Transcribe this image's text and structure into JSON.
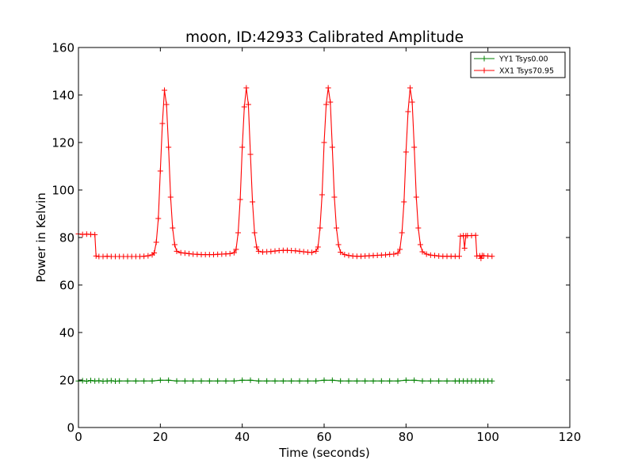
{
  "chart_data": {
    "type": "line",
    "title": "moon, ID:42933 Calibrated Amplitude",
    "xlabel": "Time (seconds)",
    "ylabel": "Power in Kelvin",
    "xlim": [
      0,
      120
    ],
    "ylim": [
      0,
      160
    ],
    "xticks": [
      0,
      20,
      40,
      60,
      80,
      100,
      120
    ],
    "yticks": [
      0,
      20,
      40,
      60,
      80,
      100,
      120,
      140,
      160
    ],
    "grid": false,
    "legend_position": "top-right",
    "marker": "+",
    "series": [
      {
        "name": "YY1 Tsys0.00",
        "color": "#008000",
        "points": [
          [
            0,
            19.6
          ],
          [
            1,
            19.7
          ],
          [
            2,
            19.5
          ],
          [
            3,
            19.8
          ],
          [
            4,
            19.6
          ],
          [
            5,
            19.7
          ],
          [
            6,
            19.5
          ],
          [
            7,
            19.6
          ],
          [
            8,
            19.7
          ],
          [
            9,
            19.5
          ],
          [
            10,
            19.6
          ],
          [
            12,
            19.6
          ],
          [
            14,
            19.6
          ],
          [
            16,
            19.6
          ],
          [
            18,
            19.6
          ],
          [
            20,
            19.9
          ],
          [
            22,
            19.9
          ],
          [
            24,
            19.6
          ],
          [
            26,
            19.6
          ],
          [
            28,
            19.6
          ],
          [
            30,
            19.6
          ],
          [
            32,
            19.6
          ],
          [
            34,
            19.6
          ],
          [
            36,
            19.6
          ],
          [
            38,
            19.6
          ],
          [
            40,
            19.9
          ],
          [
            42,
            19.9
          ],
          [
            44,
            19.6
          ],
          [
            46,
            19.6
          ],
          [
            48,
            19.6
          ],
          [
            50,
            19.6
          ],
          [
            52,
            19.6
          ],
          [
            54,
            19.6
          ],
          [
            56,
            19.6
          ],
          [
            58,
            19.6
          ],
          [
            60,
            19.9
          ],
          [
            62,
            19.9
          ],
          [
            64,
            19.6
          ],
          [
            66,
            19.6
          ],
          [
            68,
            19.6
          ],
          [
            70,
            19.6
          ],
          [
            72,
            19.6
          ],
          [
            74,
            19.6
          ],
          [
            76,
            19.6
          ],
          [
            78,
            19.6
          ],
          [
            80,
            19.9
          ],
          [
            82,
            19.9
          ],
          [
            84,
            19.6
          ],
          [
            86,
            19.6
          ],
          [
            88,
            19.6
          ],
          [
            90,
            19.6
          ],
          [
            92,
            19.6
          ],
          [
            93,
            19.6
          ],
          [
            94,
            19.6
          ],
          [
            95,
            19.6
          ],
          [
            96,
            19.6
          ],
          [
            97,
            19.6
          ],
          [
            98,
            19.6
          ],
          [
            99,
            19.6
          ],
          [
            100,
            19.6
          ],
          [
            101,
            19.6
          ]
        ]
      },
      {
        "name": "XX1 Tsys70.95",
        "color": "#ff0000",
        "points": [
          [
            0,
            81.5
          ],
          [
            1,
            81.3
          ],
          [
            2,
            81.4
          ],
          [
            3,
            81.3
          ],
          [
            4,
            81.2
          ],
          [
            4.3,
            72.2
          ],
          [
            5,
            72.0
          ],
          [
            6,
            72.0
          ],
          [
            7,
            72.1
          ],
          [
            8,
            72.0
          ],
          [
            9,
            72.0
          ],
          [
            10,
            72.0
          ],
          [
            11,
            72.0
          ],
          [
            12,
            72.0
          ],
          [
            13,
            72.0
          ],
          [
            14,
            72.0
          ],
          [
            15,
            72.0
          ],
          [
            16,
            72.1
          ],
          [
            17,
            72.3
          ],
          [
            18,
            72.7
          ],
          [
            18.5,
            73.5
          ],
          [
            19,
            78
          ],
          [
            19.5,
            88
          ],
          [
            20,
            108
          ],
          [
            20.5,
            128
          ],
          [
            21,
            142
          ],
          [
            21.5,
            136
          ],
          [
            22,
            118
          ],
          [
            22.5,
            97
          ],
          [
            23,
            84
          ],
          [
            23.5,
            77
          ],
          [
            24,
            74.2
          ],
          [
            25,
            73.6
          ],
          [
            26,
            73.4
          ],
          [
            27,
            73.2
          ],
          [
            28,
            73.0
          ],
          [
            29,
            72.9
          ],
          [
            30,
            72.8
          ],
          [
            31,
            72.8
          ],
          [
            32,
            72.8
          ],
          [
            33,
            72.8
          ],
          [
            34,
            72.9
          ],
          [
            35,
            73.0
          ],
          [
            36,
            73.1
          ],
          [
            37,
            73.2
          ],
          [
            38,
            73.6
          ],
          [
            38.5,
            75
          ],
          [
            39,
            82
          ],
          [
            39.5,
            96
          ],
          [
            40,
            118
          ],
          [
            40.5,
            135
          ],
          [
            41,
            143
          ],
          [
            41.5,
            136
          ],
          [
            42,
            115
          ],
          [
            42.5,
            95
          ],
          [
            43,
            82
          ],
          [
            43.5,
            76
          ],
          [
            44,
            74.2
          ],
          [
            45,
            73.9
          ],
          [
            46,
            74.0
          ],
          [
            47,
            74.1
          ],
          [
            48,
            74.3
          ],
          [
            49,
            74.5
          ],
          [
            50,
            74.6
          ],
          [
            51,
            74.6
          ],
          [
            52,
            74.5
          ],
          [
            53,
            74.4
          ],
          [
            54,
            74.2
          ],
          [
            55,
            74.0
          ],
          [
            56,
            73.8
          ],
          [
            57,
            73.7
          ],
          [
            58,
            74.2
          ],
          [
            58.5,
            76
          ],
          [
            59,
            84
          ],
          [
            59.5,
            98
          ],
          [
            60,
            120
          ],
          [
            60.5,
            136
          ],
          [
            61,
            143
          ],
          [
            61.5,
            137
          ],
          [
            62,
            118
          ],
          [
            62.5,
            97
          ],
          [
            63,
            84
          ],
          [
            63.5,
            77
          ],
          [
            64,
            73.8
          ],
          [
            65,
            72.8
          ],
          [
            66,
            72.4
          ],
          [
            67,
            72.2
          ],
          [
            68,
            72.1
          ],
          [
            69,
            72.1
          ],
          [
            70,
            72.2
          ],
          [
            71,
            72.3
          ],
          [
            72,
            72.4
          ],
          [
            73,
            72.5
          ],
          [
            74,
            72.6
          ],
          [
            75,
            72.7
          ],
          [
            76,
            72.9
          ],
          [
            77,
            73.0
          ],
          [
            78,
            73.4
          ],
          [
            78.5,
            75
          ],
          [
            79,
            82
          ],
          [
            79.5,
            95
          ],
          [
            80,
            116
          ],
          [
            80.5,
            133
          ],
          [
            81,
            143
          ],
          [
            81.5,
            137
          ],
          [
            82,
            118
          ],
          [
            82.5,
            97
          ],
          [
            83,
            84
          ],
          [
            83.5,
            77
          ],
          [
            84,
            74.0
          ],
          [
            85,
            73.0
          ],
          [
            86,
            72.6
          ],
          [
            87,
            72.4
          ],
          [
            88,
            72.2
          ],
          [
            89,
            72.1
          ],
          [
            90,
            72.1
          ],
          [
            91,
            72.1
          ],
          [
            92,
            72.1
          ],
          [
            93,
            72.1
          ],
          [
            93.3,
            80.6
          ],
          [
            94,
            80.8
          ],
          [
            94.3,
            75.5
          ],
          [
            94.6,
            80.7
          ],
          [
            95,
            80.8
          ],
          [
            96,
            80.8
          ],
          [
            97,
            80.9
          ],
          [
            97.3,
            72.2
          ],
          [
            98,
            72.3
          ],
          [
            98.3,
            71.2
          ],
          [
            98.6,
            72.4
          ],
          [
            99,
            72.3
          ],
          [
            100,
            72.2
          ],
          [
            101,
            72.1
          ]
        ]
      }
    ]
  }
}
